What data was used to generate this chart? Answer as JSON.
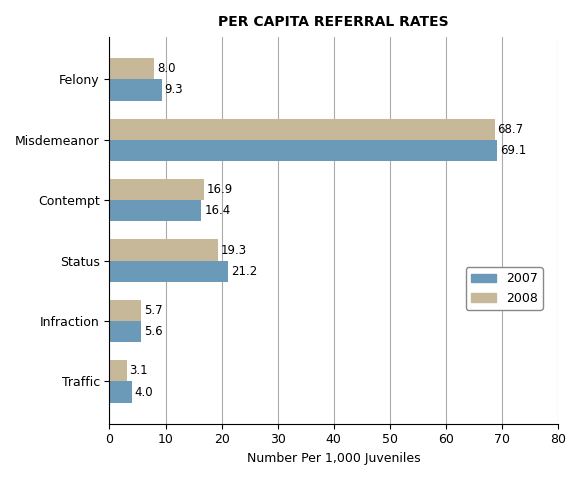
{
  "title": "PER CAPITA REFERRAL RATES",
  "xlabel": "Number Per 1,000 Juveniles",
  "categories": [
    "Felony",
    "Misdemeanor",
    "Contempt",
    "Status",
    "Infraction",
    "Traffic"
  ],
  "values_2007": [
    9.3,
    69.1,
    16.4,
    21.2,
    5.6,
    4.0
  ],
  "values_2008": [
    8.0,
    68.7,
    16.9,
    19.3,
    5.7,
    3.1
  ],
  "color_2007": "#6b9ab8",
  "color_2008": "#c8b89a",
  "xlim": [
    0,
    80
  ],
  "xticks": [
    0,
    10,
    20,
    30,
    40,
    50,
    60,
    70,
    80
  ],
  "bar_height": 0.35,
  "legend_labels": [
    "2007",
    "2008"
  ],
  "background_color": "#ffffff",
  "grid_color": "#aaaaaa"
}
